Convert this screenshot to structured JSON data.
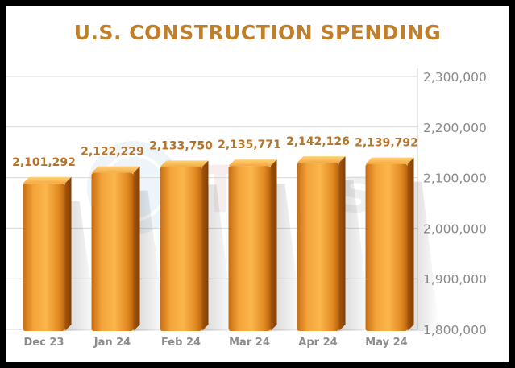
{
  "chart_data": {
    "type": "bar",
    "title": "U.S. CONSTRUCTION SPENDING",
    "categories": [
      "Dec 23",
      "Jan 24",
      "Feb 24",
      "Mar 24",
      "Apr 24",
      "May 24"
    ],
    "values": [
      2101292,
      2122229,
      2133750,
      2135771,
      2142126,
      2139792
    ],
    "data_labels": [
      "2,101,292",
      "2,122,229",
      "2,133,750",
      "2,135,771",
      "2,142,126",
      "2,139,792"
    ],
    "ylim": [
      1800000,
      2300000
    ],
    "yticks": [
      1800000,
      1900000,
      2000000,
      2100000,
      2200000,
      2300000
    ],
    "ytick_labels": [
      "1,800,000",
      "1,900,000",
      "2,000,000",
      "2,100,000",
      "2,200,000",
      "2,300,000"
    ],
    "grid": true,
    "y_axis_side": "right",
    "bar_color": "#f0a030",
    "label_color": "#b5742b",
    "title_color": "#c07f2a"
  }
}
